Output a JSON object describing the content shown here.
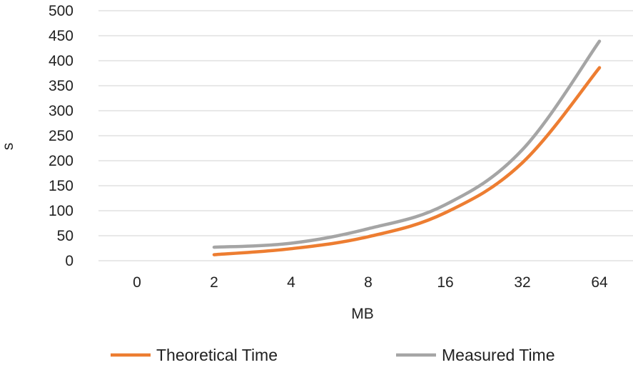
{
  "chart_data": {
    "type": "line",
    "title": "",
    "xlabel": "MB",
    "ylabel": "s",
    "categories": [
      "0",
      "2",
      "4",
      "8",
      "16",
      "32",
      "64"
    ],
    "ylim": [
      0,
      500
    ],
    "yticks": [
      "0",
      "50",
      "100",
      "150",
      "200",
      "250",
      "300",
      "350",
      "400",
      "450",
      "500"
    ],
    "grid": true,
    "legend_position": "bottom",
    "series": [
      {
        "name": "Theoretical Time",
        "color": "#ED7D31",
        "values": [
          null,
          12,
          24,
          48,
          96,
          196,
          386
        ]
      },
      {
        "name": "Measured Time",
        "color": "#A5A5A5",
        "values": [
          null,
          27,
          35,
          64,
          112,
          222,
          439
        ]
      }
    ]
  }
}
